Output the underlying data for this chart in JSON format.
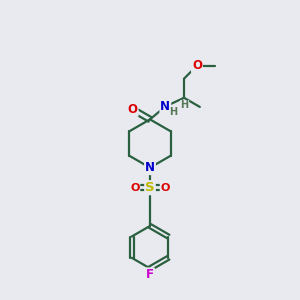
{
  "bg_color": "#e8eaf0",
  "bond_color": "#2a6040",
  "bond_width": 1.6,
  "atom_colors": {
    "O": "#dd0000",
    "N": "#0000cc",
    "S": "#bbbb00",
    "F": "#cc00cc",
    "H": "#557755",
    "C": "#2a6040"
  },
  "font_size_atom": 8.5,
  "font_size_h": 7.0
}
